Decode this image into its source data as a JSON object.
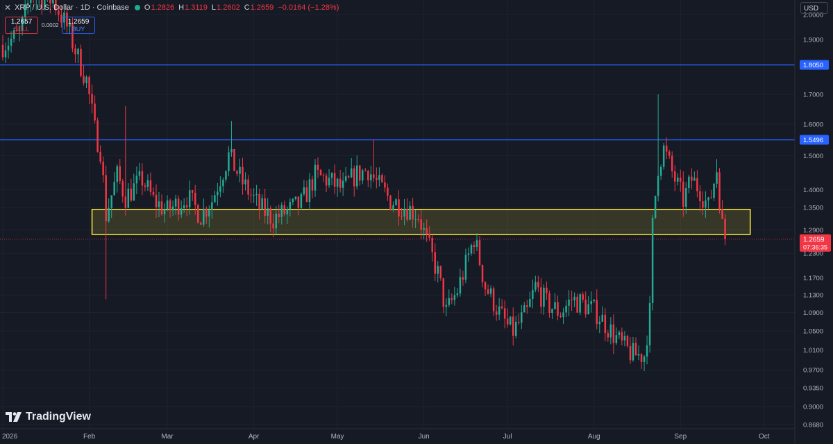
{
  "header": {
    "symbol": "XRP / U.S. Dollar · 1D · Coinbase",
    "open_label": "O",
    "open": "1.2826",
    "high_label": "H",
    "high": "1.3119",
    "low_label": "L",
    "low": "1.2602",
    "close_label": "C",
    "close": "1.2659",
    "change": "−0.0164 (−1.28%)"
  },
  "trade_panel": {
    "sell_price": "1.2657",
    "sell_label": "SELL",
    "spread": "0.0002",
    "buy_price": "1.2659",
    "buy_label": "BUY"
  },
  "currency": "USD",
  "branding": "TradingView",
  "colors": {
    "background": "#161a25",
    "up": "#22ab94",
    "down": "#f23645",
    "line": "#2962ff",
    "zone": "#ffeb3b"
  },
  "chart_data": {
    "type": "candlestick",
    "y_scale": "log",
    "ylim": [
      0.8605,
      2.06
    ],
    "y_ticks": [
      "2.0000",
      "1.9000",
      "1.7000",
      "1.6000",
      "1.5000",
      "1.4000",
      "1.3500",
      "1.2900",
      "1.2300",
      "1.1700",
      "1.1300",
      "1.0900",
      "1.0500",
      "1.0100",
      "0.9700",
      "0.9350",
      "0.9000",
      "0.8680"
    ],
    "x_ticks": [
      {
        "label": "2026",
        "date": "2026-01-01"
      },
      {
        "label": "Feb",
        "date": "2026-02-01"
      },
      {
        "label": "Mar",
        "date": "2026-03-01"
      },
      {
        "label": "Apr",
        "date": "2026-04-01"
      },
      {
        "label": "May",
        "date": "2026-05-01"
      },
      {
        "label": "Jun",
        "date": "2026-06-01"
      },
      {
        "label": "Jul",
        "date": "2026-07-01"
      },
      {
        "label": "Aug",
        "date": "2026-08-01"
      },
      {
        "label": "Sep",
        "date": "2026-09-01"
      },
      {
        "label": "Oct",
        "date": "2026-10-01"
      }
    ],
    "x_range": [
      "2025-12-31",
      "2026-10-12"
    ],
    "horizontal_lines": [
      {
        "value": 1.805,
        "label": "1.8050"
      },
      {
        "value": 1.5496,
        "label": "1.5496"
      }
    ],
    "support_zone": {
      "from": "2026-02-02",
      "to": "2026-09-26",
      "low": 1.278,
      "high": 1.345
    },
    "last_price": {
      "value": 1.2659,
      "label": "1.2659",
      "countdown": "07:36:35"
    },
    "close_path": [
      [
        "2026-01-01",
        1.88
      ],
      [
        "2026-01-07",
        1.92
      ],
      [
        "2026-01-11",
        2.08
      ],
      [
        "2026-01-19",
        2.06
      ],
      [
        "2026-01-24",
        1.95
      ],
      [
        "2026-01-28",
        1.83
      ],
      [
        "2026-01-31",
        1.75
      ],
      [
        "2026-02-03",
        1.58
      ],
      [
        "2026-02-05",
        1.52
      ],
      [
        "2026-02-07",
        1.33
      ],
      [
        "2026-02-11",
        1.44
      ],
      [
        "2026-02-14",
        1.38
      ],
      [
        "2026-02-20",
        1.43
      ],
      [
        "2026-02-24",
        1.37
      ],
      [
        "2026-03-01",
        1.34
      ],
      [
        "2026-03-08",
        1.38
      ],
      [
        "2026-03-13",
        1.33
      ],
      [
        "2026-03-17",
        1.37
      ],
      [
        "2026-03-23",
        1.5
      ],
      [
        "2026-03-28",
        1.42
      ],
      [
        "2026-04-03",
        1.35
      ],
      [
        "2026-04-08",
        1.32
      ],
      [
        "2026-04-13",
        1.34
      ],
      [
        "2026-04-18",
        1.36
      ],
      [
        "2026-04-23",
        1.44
      ],
      [
        "2026-04-27",
        1.43
      ],
      [
        "2026-05-03",
        1.4
      ],
      [
        "2026-05-07",
        1.44
      ],
      [
        "2026-05-12",
        1.46
      ],
      [
        "2026-05-15",
        1.42
      ],
      [
        "2026-05-20",
        1.37
      ],
      [
        "2026-05-26",
        1.35
      ],
      [
        "2026-05-30",
        1.33
      ],
      [
        "2026-06-02",
        1.26
      ],
      [
        "2026-06-06",
        1.18
      ],
      [
        "2026-06-09",
        1.09
      ],
      [
        "2026-06-13",
        1.14
      ],
      [
        "2026-06-16",
        1.2
      ],
      [
        "2026-06-19",
        1.27
      ],
      [
        "2026-06-23",
        1.15
      ],
      [
        "2026-06-28",
        1.09
      ],
      [
        "2026-07-01",
        1.06
      ],
      [
        "2026-07-03",
        1.05
      ],
      [
        "2026-07-08",
        1.09
      ],
      [
        "2026-07-11",
        1.15
      ],
      [
        "2026-07-15",
        1.11
      ],
      [
        "2026-07-20",
        1.09
      ],
      [
        "2026-07-24",
        1.12
      ],
      [
        "2026-07-28",
        1.11
      ],
      [
        "2026-08-02",
        1.09
      ],
      [
        "2026-08-07",
        1.05
      ],
      [
        "2026-08-11",
        1.02
      ],
      [
        "2026-08-15",
        1.0
      ],
      [
        "2026-08-19",
        1.0
      ],
      [
        "2026-08-21",
        1.09
      ],
      [
        "2026-08-22",
        1.3
      ],
      [
        "2026-08-24",
        1.47
      ],
      [
        "2026-08-26",
        1.52
      ],
      [
        "2026-08-29",
        1.45
      ],
      [
        "2026-09-02",
        1.37
      ],
      [
        "2026-09-05",
        1.43
      ],
      [
        "2026-09-08",
        1.4
      ],
      [
        "2026-09-11",
        1.35
      ],
      [
        "2026-09-14",
        1.46
      ],
      [
        "2026-09-16",
        1.3
      ],
      [
        "2026-09-17",
        1.2659
      ]
    ]
  }
}
